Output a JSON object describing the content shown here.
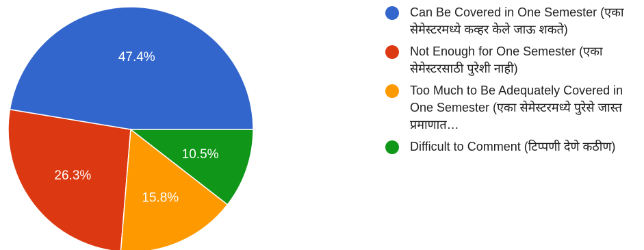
{
  "chart_data": {
    "type": "pie",
    "slices": [
      {
        "label": "Can Be Covered in One Semester (एका सेमेस्टरमध्ये कव्हर केले जाऊ शकते)",
        "value": 47.4,
        "value_label": "47.4%",
        "color": "#3366cc"
      },
      {
        "label": "Not Enough for One Semester (एका सेमेस्टरसाठी पुरेशी नाही)",
        "value": 26.3,
        "value_label": "26.3%",
        "color": "#dc3912"
      },
      {
        "label": "Too Much to Be Adequately Covered in One Semester (एका सेमेस्टरमध्ये पुरेसे जास्त प्रमाणात…",
        "value": 15.8,
        "value_label": "15.8%",
        "color": "#ff9900"
      },
      {
        "label": "Difficult to Comment (टिप्पणी देणे कठीण)",
        "value": 10.5,
        "value_label": "10.5%",
        "color": "#109618"
      }
    ],
    "start_direction": "right",
    "order": "counter-clockwise",
    "legend_position": "right"
  }
}
